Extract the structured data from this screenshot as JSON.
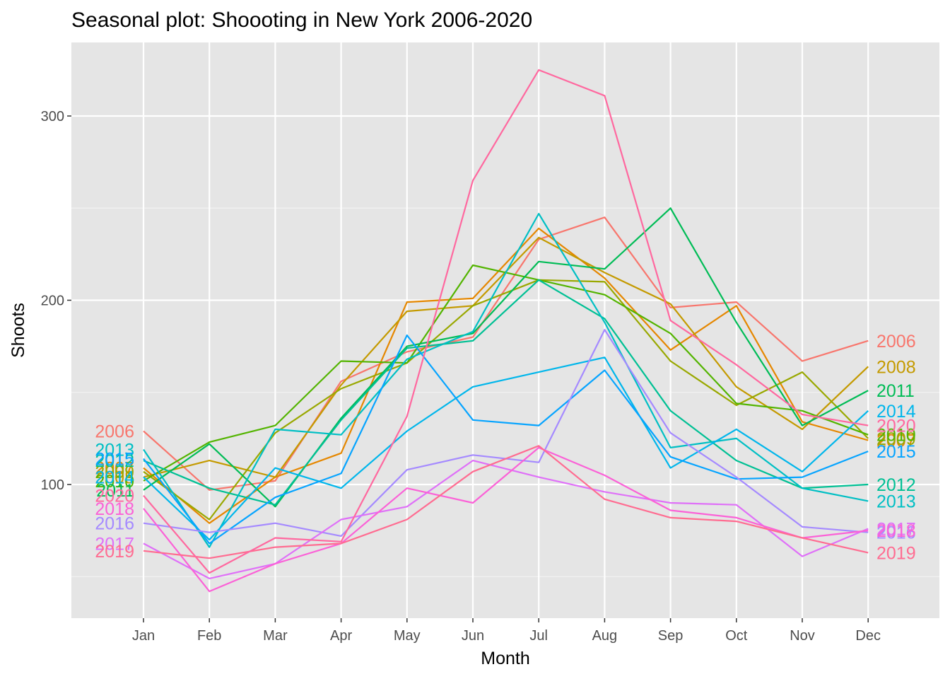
{
  "chart_data": {
    "type": "line",
    "title": "Seasonal plot: Shoooting in New York 2006-2020",
    "xlabel": "Month",
    "ylabel": "Shoots",
    "categories": [
      "Jan",
      "Feb",
      "Mar",
      "Apr",
      "May",
      "Jun",
      "Jul",
      "Aug",
      "Sep",
      "Oct",
      "Nov",
      "Dec"
    ],
    "yticks": [
      100,
      200,
      300
    ],
    "ylim": [
      30,
      335
    ],
    "grid": true,
    "legend": "none (series labelled at both line ends)",
    "background": "#e5e5e5",
    "series": [
      {
        "name": "2006",
        "color": "#f8766d",
        "values": [
          129,
          97,
          102,
          156,
          172,
          180,
          233,
          245,
          196,
          199,
          167,
          178
        ]
      },
      {
        "name": "2007",
        "color": "#e58700",
        "values": [
          109,
          79,
          104,
          117,
          199,
          201,
          239,
          212,
          173,
          197,
          134,
          124
        ]
      },
      {
        "name": "2008",
        "color": "#c49a00",
        "values": [
          104,
          113,
          104,
          154,
          194,
          197,
          234,
          215,
          198,
          153,
          130,
          164
        ]
      },
      {
        "name": "2009",
        "color": "#99a800",
        "values": [
          107,
          81,
          128,
          152,
          166,
          197,
          211,
          210,
          167,
          143,
          161,
          125
        ]
      },
      {
        "name": "2010",
        "color": "#53b400",
        "values": [
          102,
          123,
          132,
          167,
          166,
          219,
          211,
          203,
          182,
          144,
          140,
          127
        ]
      },
      {
        "name": "2011",
        "color": "#00bc56",
        "values": [
          97,
          122,
          88,
          136,
          175,
          182,
          221,
          217,
          250,
          188,
          132,
          151
        ]
      },
      {
        "name": "2012",
        "color": "#00c094",
        "values": [
          113,
          98,
          89,
          135,
          174,
          178,
          211,
          190,
          140,
          113,
          98,
          100
        ]
      },
      {
        "name": "2013",
        "color": "#00bfc4",
        "values": [
          119,
          66,
          130,
          127,
          168,
          183,
          247,
          188,
          120,
          125,
          98,
          91
        ]
      },
      {
        "name": "2014",
        "color": "#00b6eb",
        "values": [
          104,
          70,
          109,
          98,
          129,
          153,
          161,
          169,
          109,
          130,
          107,
          140
        ]
      },
      {
        "name": "2015",
        "color": "#06a4ff",
        "values": [
          114,
          68,
          93,
          106,
          181,
          135,
          132,
          162,
          115,
          103,
          104,
          118
        ]
      },
      {
        "name": "2016",
        "color": "#a58aff",
        "values": [
          79,
          74,
          79,
          72,
          108,
          116,
          112,
          184,
          128,
          104,
          77,
          74
        ]
      },
      {
        "name": "2017",
        "color": "#df70f8",
        "values": [
          68,
          49,
          57,
          81,
          88,
          113,
          104,
          96,
          90,
          89,
          61,
          76
        ]
      },
      {
        "name": "2018",
        "color": "#fb61d7",
        "values": [
          87,
          42,
          57,
          68,
          98,
          90,
          120,
          105,
          86,
          82,
          71,
          75
        ]
      },
      {
        "name": "2019",
        "color": "#ff6c91",
        "values": [
          64,
          60,
          66,
          68,
          81,
          107,
          121,
          92,
          82,
          80,
          71,
          63
        ]
      },
      {
        "name": "2020",
        "color": "#ff689f",
        "values": [
          94,
          52,
          71,
          69,
          137,
          265,
          325,
          311,
          189,
          165,
          138,
          132
        ]
      }
    ]
  }
}
